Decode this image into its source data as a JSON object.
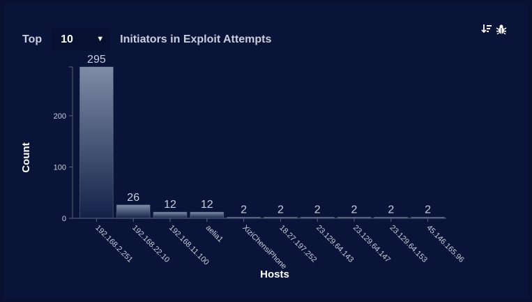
{
  "header": {
    "top_label": "Top",
    "top_select_value": "10",
    "title": "Initiators in Exploit Attempts"
  },
  "toolbar": {
    "icons": [
      "sort-icon",
      "bug-icon"
    ]
  },
  "colors": {
    "background": "#0a1338",
    "bar_top": "#7f8ca6",
    "bar_bottom": "#14224a",
    "axis": "#5d6680",
    "text": "#c9cfdc"
  },
  "chart_data": {
    "type": "bar",
    "categories": [
      "192.168.2.251",
      "192.168.22.10",
      "192.168.11.100",
      "aelia1",
      "XiziChensiPhone",
      "18.27.197.252",
      "23.129.64.143",
      "23.129.64.147",
      "23.129.64.153",
      "45.146.165.96"
    ],
    "values": [
      295,
      26,
      12,
      12,
      2,
      2,
      2,
      2,
      2,
      2
    ],
    "xlabel": "Hosts",
    "ylabel": "Count",
    "ylim": [
      0,
      295
    ],
    "yticks": [
      0,
      100,
      200
    ],
    "grid": false,
    "legend": "none"
  }
}
